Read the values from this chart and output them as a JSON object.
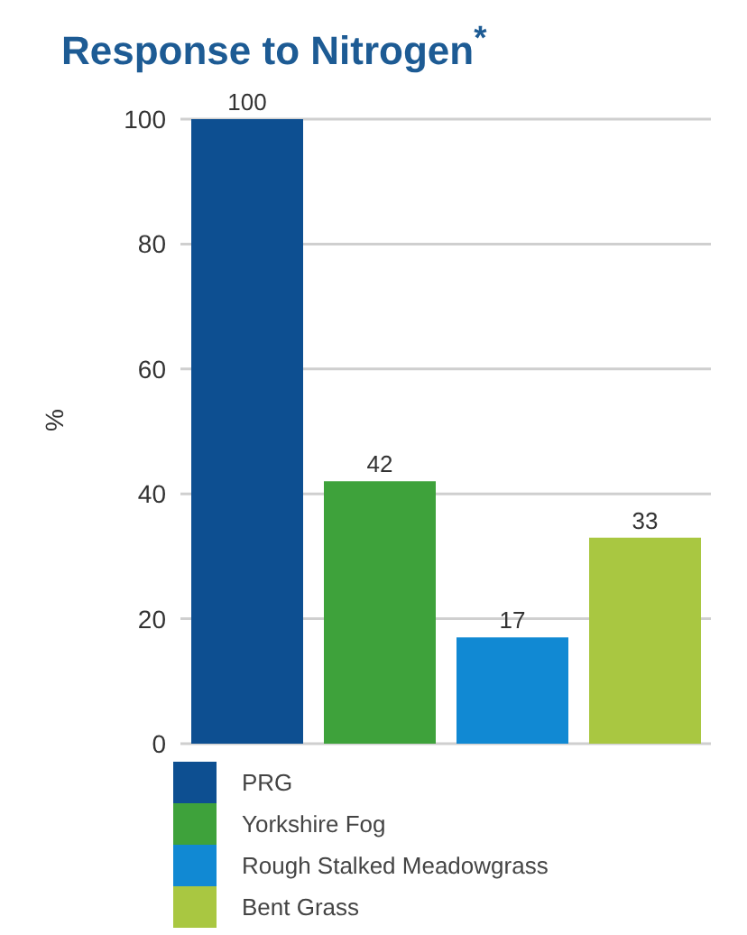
{
  "chart_data": {
    "type": "bar",
    "title": "Response to Nitrogen$^{*}$",
    "ylabel": "%",
    "categories": [
      null,
      null,
      null,
      null
    ],
    "series": [
      {
        "name": "PRG",
        "color": "#0d4f91",
        "values": [
          100,
          null,
          null,
          null
        ]
      },
      {
        "name": "Yorkshire Fog",
        "color": "#3ea23b",
        "values": [
          null,
          42,
          null,
          null
        ]
      },
      {
        "name": "Rough Stalked Meadowgrass",
        "color": "#1189d3",
        "values": [
          null,
          null,
          17,
          null
        ]
      },
      {
        "name": "Bent Grass",
        "color": "#a9c741",
        "values": [
          null,
          null,
          null,
          33
        ]
      }
    ],
    "ylim": [
      0,
      100
    ],
    "yticks": [
      0,
      20,
      40,
      60,
      80,
      100
    ],
    "grid": "y",
    "data_labels": true,
    "legend": "bottom"
  }
}
